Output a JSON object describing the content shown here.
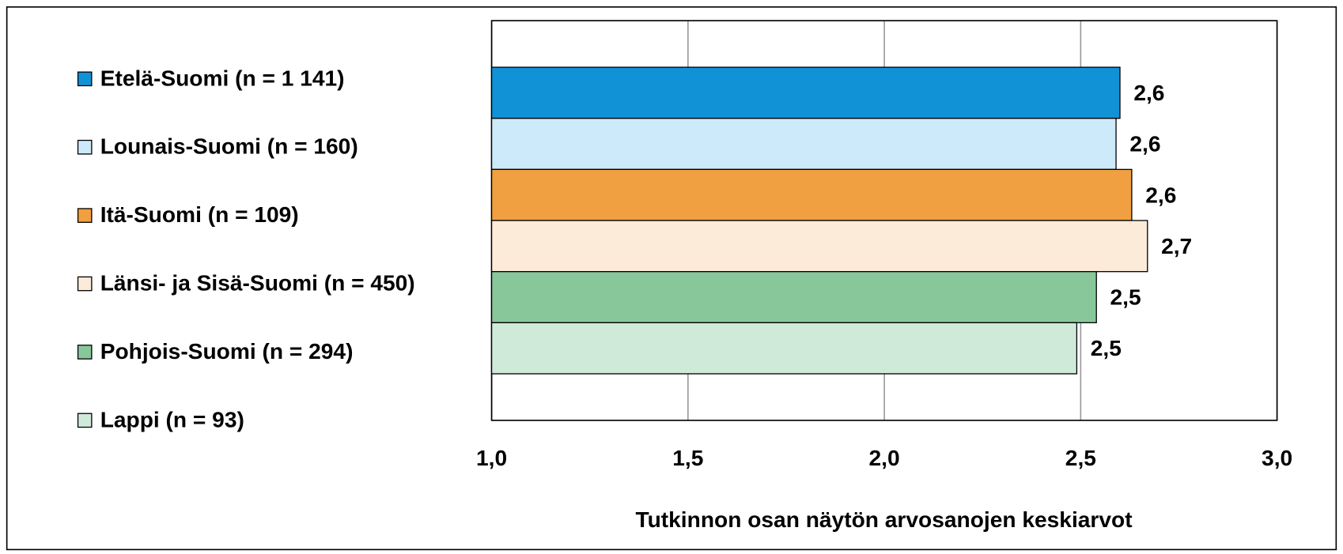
{
  "chart_data": {
    "type": "bar",
    "orientation": "horizontal",
    "x_label": "Tutkinnon osan näytön arvosanojen keskiarvot",
    "categories": [
      null
    ],
    "series": [
      {
        "name": "Etelä-Suomi (n = 1 141)",
        "color": "#1192d6",
        "values": [
          2.6
        ],
        "value_labels": [
          "2,6"
        ]
      },
      {
        "name": "Lounais-Suomi (n = 160)",
        "color": "#cdeafb",
        "values": [
          2.59
        ],
        "value_labels": [
          "2,6"
        ]
      },
      {
        "name": "Itä-Suomi (n = 109)",
        "color": "#f0a040",
        "values": [
          2.63
        ],
        "value_labels": [
          "2,6"
        ]
      },
      {
        "name": "Länsi- ja Sisä-Suomi (n = 450)",
        "color": "#fdebd9",
        "values": [
          2.67
        ],
        "value_labels": [
          "2,7"
        ]
      },
      {
        "name": "Pohjois-Suomi (n = 294)",
        "color": "#88c79a",
        "values": [
          2.54
        ],
        "value_labels": [
          "2,5"
        ]
      },
      {
        "name": "Lappi (n = 93)",
        "color": "#d0eada",
        "values": [
          2.49
        ],
        "value_labels": [
          "2,5"
        ]
      }
    ],
    "xlim": [
      1.0,
      3.0
    ],
    "xticks": [
      {
        "value": 1.0,
        "label": "1,0"
      },
      {
        "value": 1.5,
        "label": "1,5"
      },
      {
        "value": 2.0,
        "label": "2,0"
      },
      {
        "value": 2.5,
        "label": "2,5"
      },
      {
        "value": 3.0,
        "label": "3,0"
      }
    ],
    "grid": true,
    "legend": "left"
  }
}
